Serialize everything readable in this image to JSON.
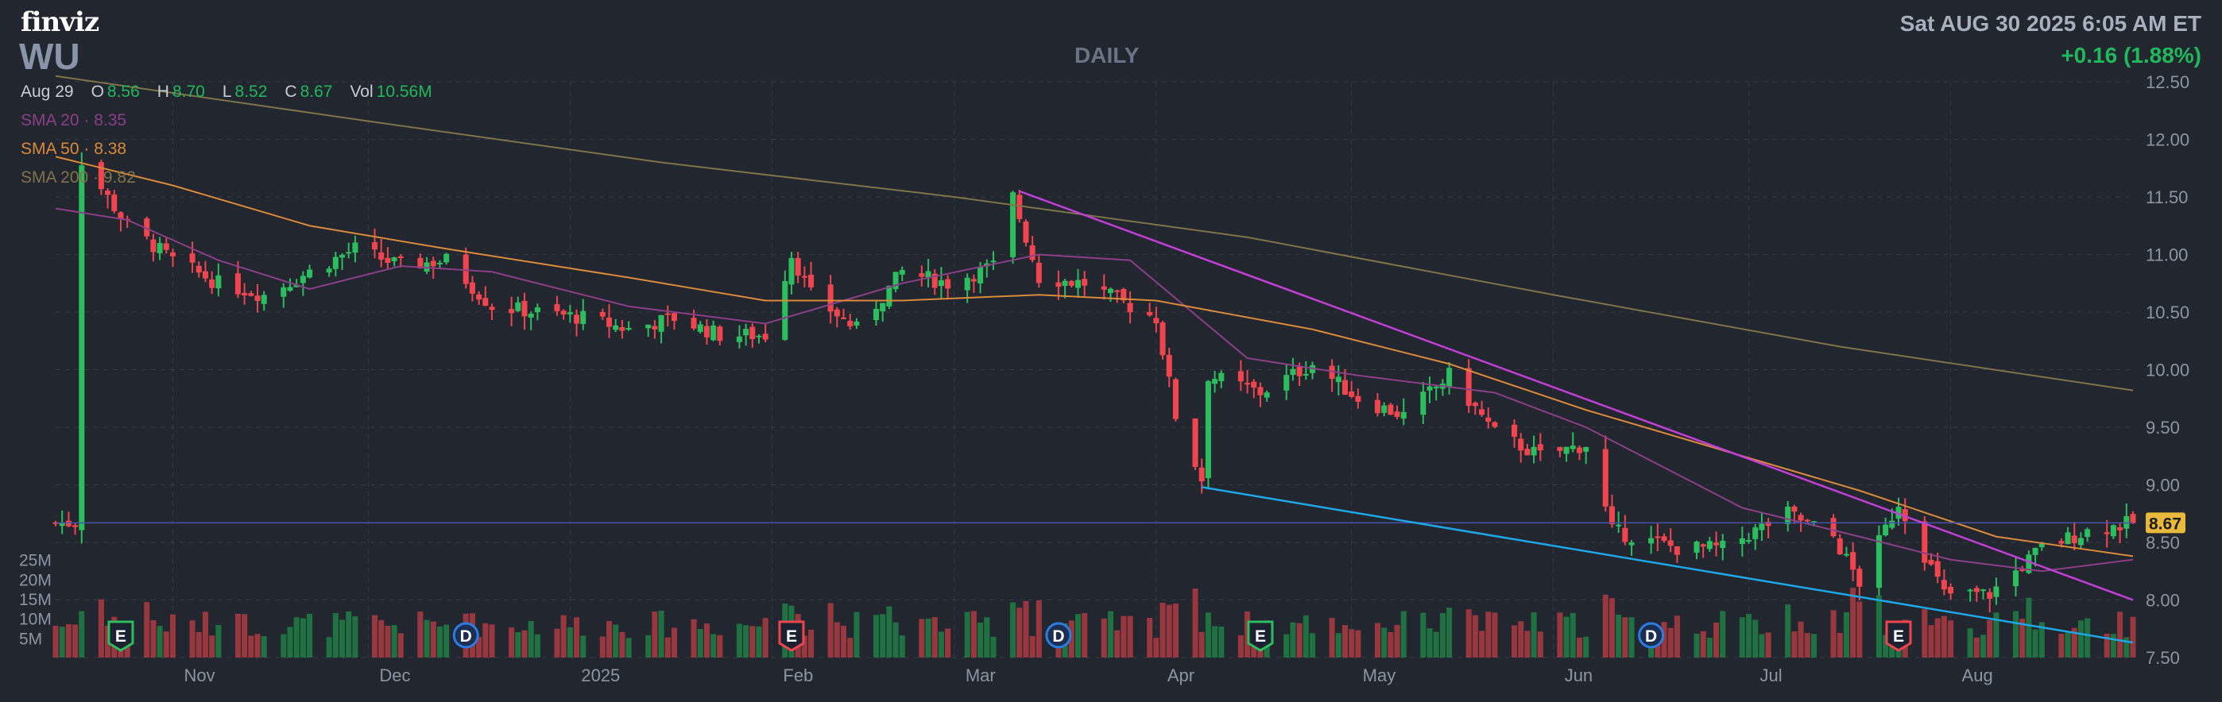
{
  "header": {
    "logo": "finviz",
    "ticker": "WU",
    "timeframe": "DAILY",
    "datetime": "Sat AUG 30 2025 6:05 AM ET",
    "change": "+0.16 (1.88%)"
  },
  "ohlc": {
    "date": "Aug 29",
    "o_label": "O",
    "o": "8.56",
    "h_label": "H",
    "h": "8.70",
    "l_label": "L",
    "l": "8.52",
    "c_label": "C",
    "c": "8.67",
    "vol_label": "Vol",
    "vol": "10.56M"
  },
  "sma": [
    {
      "label": "SMA 20",
      "value": "8.35",
      "color": "#8a3f86"
    },
    {
      "label": "SMA 50",
      "value": "8.38",
      "color": "#d98a3a"
    },
    {
      "label": "SMA 200",
      "value": "9.82",
      "color": "#7e7448"
    }
  ],
  "colors": {
    "up": "#2bbd5e",
    "down": "#f0454f",
    "background": "#22262f",
    "grid": "#353a45",
    "last_price": "#e8b93a",
    "trend_upper": "#c23fd6",
    "trend_lower": "#1ea7e6"
  },
  "chart_data": {
    "type": "candlestick",
    "timeframe": "daily",
    "ylim": [
      7.5,
      12.5
    ],
    "y_ticks": [
      "12.50",
      "12.00",
      "11.50",
      "11.00",
      "10.50",
      "10.00",
      "9.50",
      "9.00",
      "8.50",
      "8.00",
      "7.50"
    ],
    "x_ticks": [
      "Nov",
      "Dec",
      "2025",
      "Feb",
      "Mar",
      "Apr",
      "May",
      "Jun",
      "Jul",
      "Aug"
    ],
    "volume_ticks": [
      "25M",
      "20M",
      "15M",
      "10M",
      "5M"
    ],
    "volume_ylim": [
      0,
      30
    ],
    "last_price": "8.67",
    "ohlc_anchors": [
      {
        "date": "2024-10-18",
        "close": 11.82
      },
      {
        "date": "2024-10-25",
        "close": 11.25
      },
      {
        "date": "2024-11-01",
        "close": 10.95
      },
      {
        "date": "2024-11-08",
        "close": 10.75
      },
      {
        "date": "2024-11-15",
        "close": 10.65
      },
      {
        "date": "2024-11-22",
        "close": 10.85
      },
      {
        "date": "2024-11-29",
        "close": 11.05
      },
      {
        "date": "2024-12-06",
        "close": 10.9
      },
      {
        "date": "2024-12-13",
        "close": 10.95
      },
      {
        "date": "2024-12-20",
        "close": 10.55
      },
      {
        "date": "2024-12-27",
        "close": 10.5
      },
      {
        "date": "2025-01-03",
        "close": 10.45
      },
      {
        "date": "2025-01-10",
        "close": 10.35
      },
      {
        "date": "2025-01-17",
        "close": 10.45
      },
      {
        "date": "2025-01-24",
        "close": 10.3
      },
      {
        "date": "2025-01-31",
        "close": 10.3
      },
      {
        "date": "2025-02-04",
        "close": 11.0
      },
      {
        "date": "2025-02-07",
        "close": 10.65
      },
      {
        "date": "2025-02-14",
        "close": 10.35
      },
      {
        "date": "2025-02-21",
        "close": 10.85
      },
      {
        "date": "2025-02-28",
        "close": 10.75
      },
      {
        "date": "2025-03-07",
        "close": 10.9
      },
      {
        "date": "2025-03-10",
        "close": 11.5
      },
      {
        "date": "2025-03-14",
        "close": 10.8
      },
      {
        "date": "2025-03-21",
        "close": 10.75
      },
      {
        "date": "2025-03-28",
        "close": 10.55
      },
      {
        "date": "2025-04-01",
        "close": 10.45
      },
      {
        "date": "2025-04-04",
        "close": 9.6
      },
      {
        "date": "2025-04-08",
        "close": 9.05
      },
      {
        "date": "2025-04-09",
        "close": 9.95
      },
      {
        "date": "2025-04-17",
        "close": 9.8
      },
      {
        "date": "2025-04-25",
        "close": 10.05
      },
      {
        "date": "2025-05-02",
        "close": 9.75
      },
      {
        "date": "2025-05-09",
        "close": 9.6
      },
      {
        "date": "2025-05-16",
        "close": 9.95
      },
      {
        "date": "2025-05-23",
        "close": 9.45
      },
      {
        "date": "2025-05-30",
        "close": 9.25
      },
      {
        "date": "2025-06-06",
        "close": 9.35
      },
      {
        "date": "2025-06-10",
        "close": 8.6
      },
      {
        "date": "2025-06-20",
        "close": 8.45
      },
      {
        "date": "2025-06-27",
        "close": 8.45
      },
      {
        "date": "2025-07-07",
        "close": 8.75
      },
      {
        "date": "2025-07-14",
        "close": 8.55
      },
      {
        "date": "2025-07-18",
        "close": 8.15
      },
      {
        "date": "2025-07-24",
        "close": 8.85
      },
      {
        "date": "2025-07-31",
        "close": 8.05
      },
      {
        "date": "2025-08-07",
        "close": 8.05
      },
      {
        "date": "2025-08-15",
        "close": 8.45
      },
      {
        "date": "2025-08-22",
        "close": 8.6
      },
      {
        "date": "2025-08-29",
        "close": 8.67
      }
    ],
    "sma_series": [
      {
        "name": "SMA 20",
        "color": "#8a3f86",
        "points": [
          [
            "2024-10-14",
            11.4
          ],
          [
            "2024-10-25",
            11.3
          ],
          [
            "2024-11-08",
            10.95
          ],
          [
            "2024-11-22",
            10.7
          ],
          [
            "2024-12-06",
            10.9
          ],
          [
            "2024-12-20",
            10.85
          ],
          [
            "2025-01-10",
            10.55
          ],
          [
            "2025-01-31",
            10.4
          ],
          [
            "2025-02-21",
            10.75
          ],
          [
            "2025-03-14",
            11.0
          ],
          [
            "2025-03-28",
            10.95
          ],
          [
            "2025-04-15",
            10.1
          ],
          [
            "2025-05-02",
            9.95
          ],
          [
            "2025-05-23",
            9.8
          ],
          [
            "2025-06-06",
            9.5
          ],
          [
            "2025-06-30",
            8.8
          ],
          [
            "2025-07-18",
            8.55
          ],
          [
            "2025-08-01",
            8.35
          ],
          [
            "2025-08-15",
            8.25
          ],
          [
            "2025-08-29",
            8.35
          ]
        ]
      },
      {
        "name": "SMA 50",
        "color": "#d98a3a",
        "points": [
          [
            "2024-10-14",
            11.85
          ],
          [
            "2024-11-01",
            11.6
          ],
          [
            "2024-11-22",
            11.25
          ],
          [
            "2024-12-13",
            11.05
          ],
          [
            "2025-01-10",
            10.8
          ],
          [
            "2025-01-31",
            10.6
          ],
          [
            "2025-02-21",
            10.6
          ],
          [
            "2025-03-14",
            10.65
          ],
          [
            "2025-04-01",
            10.6
          ],
          [
            "2025-04-25",
            10.35
          ],
          [
            "2025-05-16",
            10.05
          ],
          [
            "2025-06-06",
            9.65
          ],
          [
            "2025-06-27",
            9.3
          ],
          [
            "2025-07-18",
            8.95
          ],
          [
            "2025-08-08",
            8.55
          ],
          [
            "2025-08-29",
            8.38
          ]
        ]
      },
      {
        "name": "SMA 200",
        "color": "#7e7448",
        "points": [
          [
            "2024-10-14",
            12.55
          ],
          [
            "2024-12-02",
            12.15
          ],
          [
            "2025-01-15",
            11.8
          ],
          [
            "2025-03-01",
            11.5
          ],
          [
            "2025-04-15",
            11.15
          ],
          [
            "2025-06-01",
            10.65
          ],
          [
            "2025-07-15",
            10.2
          ],
          [
            "2025-08-29",
            9.82
          ]
        ]
      }
    ],
    "trendlines": [
      {
        "name": "upper",
        "color": "#c23fd6",
        "from": [
          "2025-03-11",
          11.55
        ],
        "to": [
          "2025-08-29",
          8.0
        ]
      },
      {
        "name": "lower",
        "color": "#1ea7e6",
        "from": [
          "2025-04-08",
          8.98
        ],
        "to": [
          "2025-08-29",
          7.63
        ]
      }
    ],
    "events": [
      {
        "type": "E",
        "label": "E",
        "date": "2024-10-24",
        "color": "#2bbd5e"
      },
      {
        "type": "D",
        "label": "D",
        "date": "2024-12-16",
        "color": "#2a7de1"
      },
      {
        "type": "E",
        "label": "E",
        "date": "2025-02-04",
        "color": "#f0454f"
      },
      {
        "type": "D",
        "label": "D",
        "date": "2025-03-17",
        "color": "#2a7de1"
      },
      {
        "type": "E",
        "label": "E",
        "date": "2025-04-17",
        "color": "#2bbd5e"
      },
      {
        "type": "D",
        "label": "D",
        "date": "2025-06-16",
        "color": "#2a7de1"
      },
      {
        "type": "E",
        "label": "E",
        "date": "2025-07-24",
        "color": "#f0454f"
      }
    ]
  }
}
